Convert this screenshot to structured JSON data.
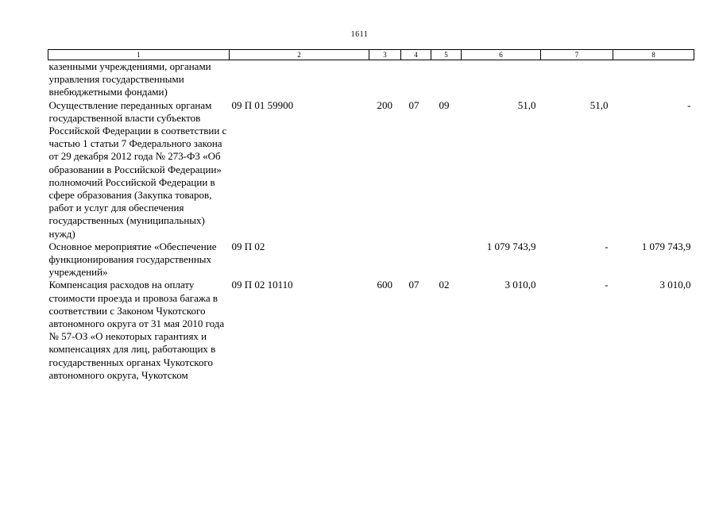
{
  "page_number": "1611",
  "header_columns": [
    "1",
    "2",
    "3",
    "4",
    "5",
    "6",
    "7",
    "8"
  ],
  "rows": [
    {
      "name": "казенными учреждениями, органами управления государственными внебюджетными фондами)",
      "code": "",
      "vr": "",
      "rz": "",
      "pr": "",
      "c6": "",
      "c7": "",
      "c8": ""
    },
    {
      "name": "Осуществление переданных органам государственной власти субъектов Российской Федерации в соответствии с частью 1 статьи 7 Федерального закона от 29 декабря 2012 года № 273-ФЗ «Об образовании в Российской Федерации» полномочий Российской Федерации в сфере образования (Закупка товаров, работ и услуг для обеспечения государственных (муниципальных) нужд)",
      "code": "09 П 01 59900",
      "vr": "200",
      "rz": "07",
      "pr": "09",
      "c6": "51,0",
      "c7": "51,0",
      "c8": "-"
    },
    {
      "name": "Основное мероприятие «Обеспечение функционирования государственных учреждений»",
      "code": "09 П 02",
      "vr": "",
      "rz": "",
      "pr": "",
      "c6": "1 079 743,9",
      "c7": "-",
      "c8": "1 079 743,9"
    },
    {
      "name": "Компенсация расходов на оплату стоимости проезда и провоза багажа в соответствии с Законом Чукотского автономного округа от 31 мая 2010 года № 57-ОЗ «О некоторых гарантиях и компенсациях для лиц, работающих в государственных органах Чукотского автономного округа, Чукотском",
      "code": "09 П 02 10110",
      "vr": "600",
      "rz": "07",
      "pr": "02",
      "c6": "3 010,0",
      "c7": "-",
      "c8": "3 010,0"
    }
  ]
}
